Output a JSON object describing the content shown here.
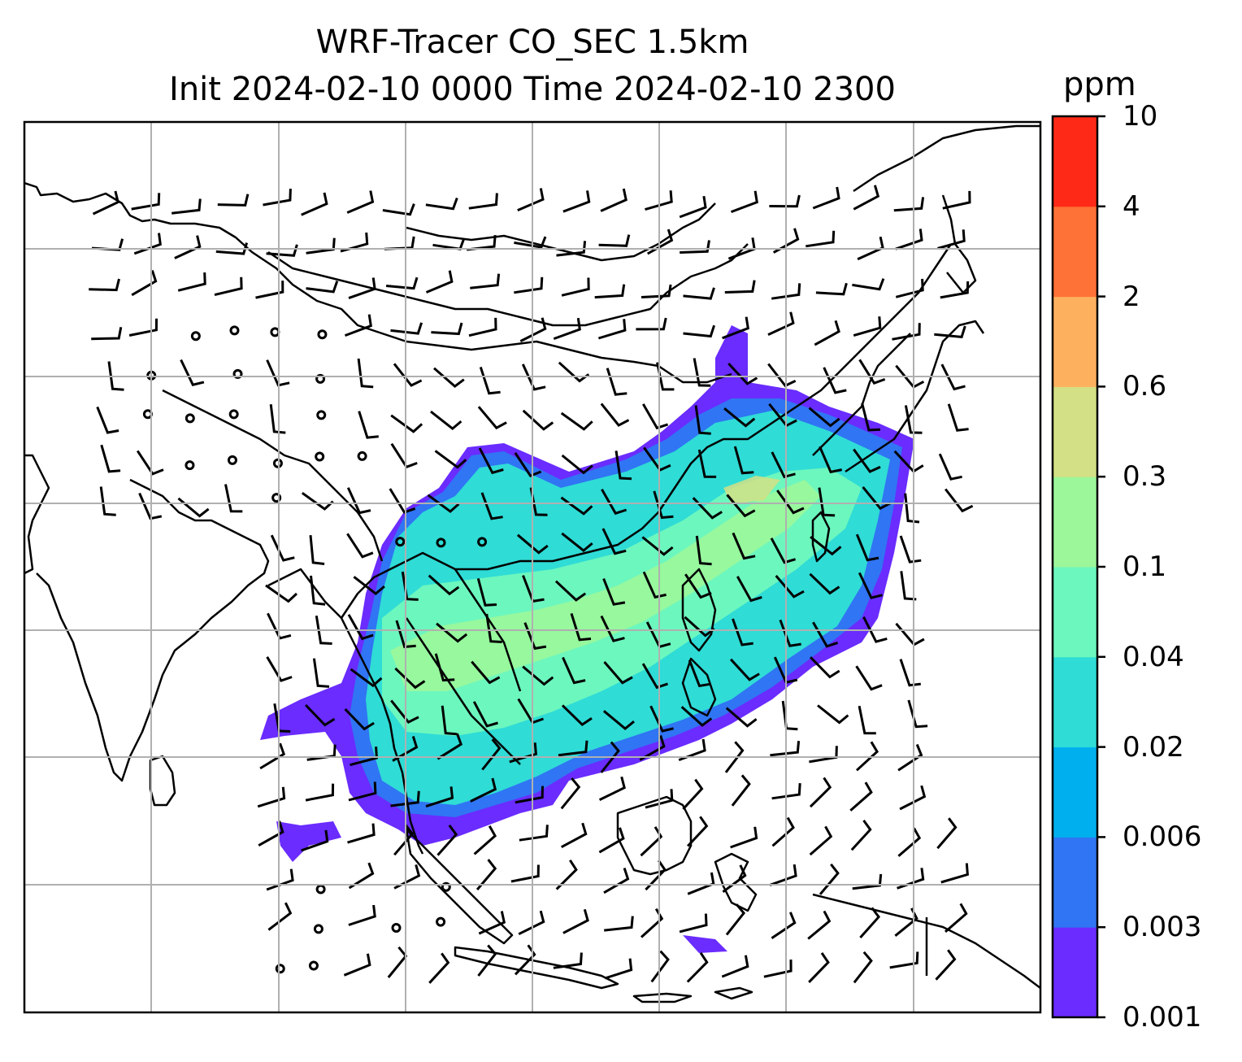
{
  "map": {
    "title_line1": "WRF-Tracer CO_SEC 1.5km",
    "title_line2": "Init 2024-02-10 0000 Time 2024-02-10 2300",
    "variable": "CO_SEC tracer concentration",
    "overlays": [
      "coastlines",
      "country borders",
      "wind barbs",
      "lat/lon gridlines"
    ],
    "gridlines": true
  },
  "colorbar": {
    "unit": "ppm",
    "levels": [
      "0.001",
      "0.003",
      "0.006",
      "0.02",
      "0.04",
      "0.1",
      "0.3",
      "0.6",
      "2",
      "4",
      "10"
    ],
    "colors": [
      "#6a2cff",
      "#3075f3",
      "#00b0ee",
      "#2fdcd6",
      "#6cf7be",
      "#9cf79a",
      "#d4e085",
      "#fdb15f",
      "#fe7137",
      "#fe2a17"
    ]
  }
}
